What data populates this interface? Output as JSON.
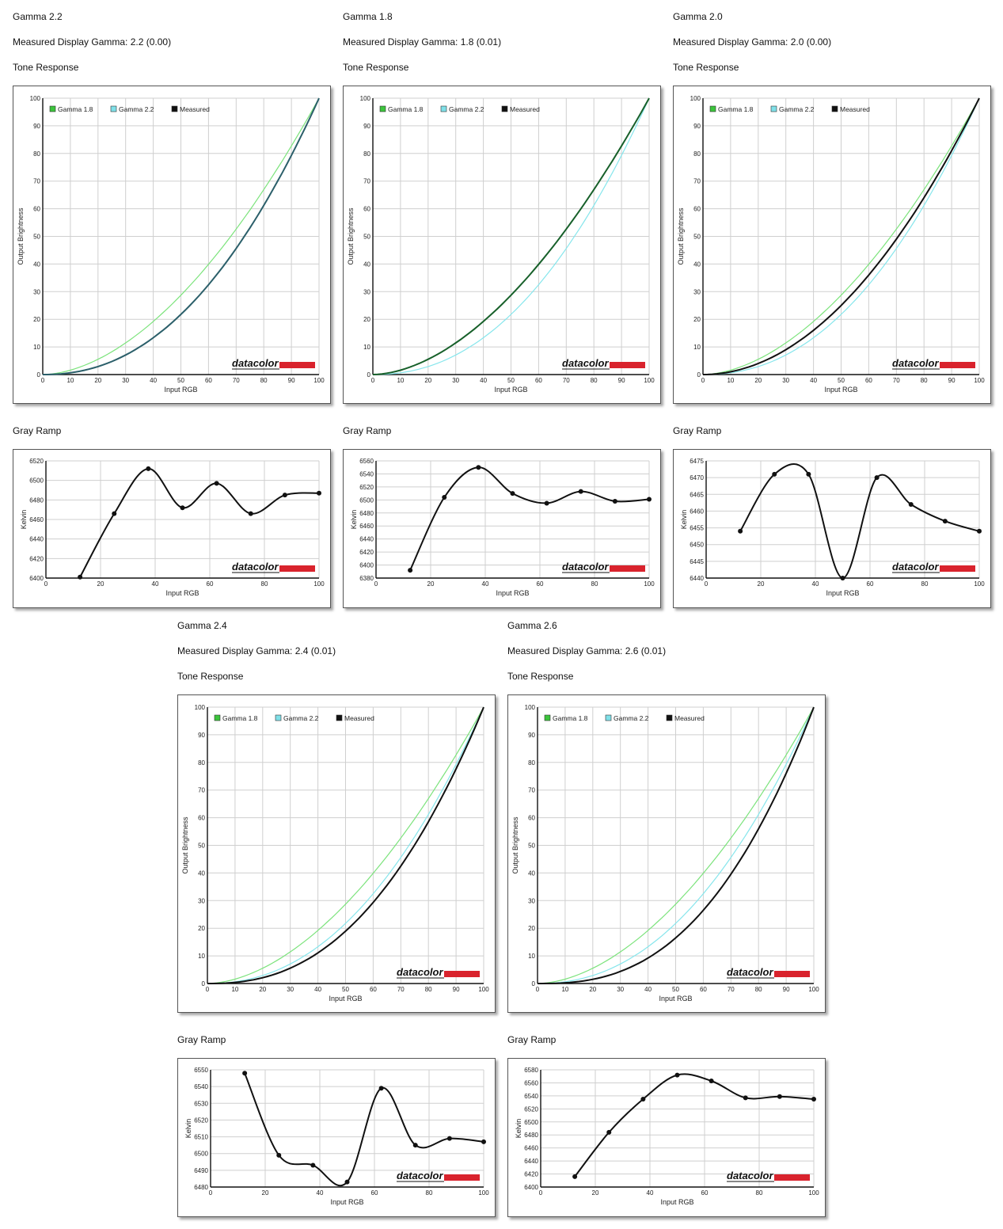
{
  "legend_label": [
    "Gamma 1.8",
    "Gamma 2.2",
    "Measured"
  ],
  "logo_text": "datacolor",
  "colors": {
    "g18": "#7be37b",
    "g22": "#86e6ec",
    "measured": "#111111",
    "logo_red": "#d9232d",
    "grid": "#cfcfcf"
  },
  "panels": [
    {
      "title": "Gamma 2.2",
      "measured_text": "Measured Display Gamma: 2.2 (0.00)",
      "tone_heading": "Tone Response",
      "gray_heading": "Gray Ramp",
      "tone_chart": {
        "type": "line",
        "xlabel": "Input RGB",
        "ylabel": "Output Brightness",
        "xlim": [
          0,
          100
        ],
        "ylim": [
          0,
          100
        ],
        "xticks": [
          0,
          10,
          20,
          30,
          40,
          50,
          60,
          70,
          80,
          90,
          100
        ],
        "yticks": [
          0,
          10,
          20,
          30,
          40,
          50,
          60,
          70,
          80,
          90,
          100
        ],
        "series": [
          {
            "name": "Gamma 1.8",
            "gamma": 1.8
          },
          {
            "name": "Gamma 2.2",
            "gamma": 2.2
          },
          {
            "name": "Measured",
            "gamma": 2.2
          }
        ]
      },
      "gray_chart": {
        "type": "line",
        "xlabel": "Input RGB",
        "ylabel": "Kelvin",
        "xlim": [
          0,
          100
        ],
        "ylim": [
          6400,
          6520
        ],
        "xticks": [
          0,
          20,
          40,
          60,
          80,
          100
        ],
        "yticks": [
          6400,
          6420,
          6440,
          6460,
          6480,
          6500,
          6520
        ],
        "x": [
          12.5,
          25,
          37.5,
          50,
          62.5,
          75,
          87.5,
          100
        ],
        "values": [
          6401,
          6466,
          6512,
          6472,
          6497,
          6466,
          6485,
          6487
        ]
      }
    },
    {
      "title": "Gamma 1.8",
      "measured_text": "Measured Display Gamma: 1.8 (0.01)",
      "tone_heading": "Tone Response",
      "gray_heading": "Gray Ramp",
      "tone_chart": {
        "type": "line",
        "xlabel": "Input RGB",
        "ylabel": "Output Brightness",
        "xlim": [
          0,
          100
        ],
        "ylim": [
          0,
          100
        ],
        "xticks": [
          0,
          10,
          20,
          30,
          40,
          50,
          60,
          70,
          80,
          90,
          100
        ],
        "yticks": [
          0,
          10,
          20,
          30,
          40,
          50,
          60,
          70,
          80,
          90,
          100
        ],
        "series": [
          {
            "name": "Gamma 1.8",
            "gamma": 1.8
          },
          {
            "name": "Gamma 2.2",
            "gamma": 2.2
          },
          {
            "name": "Measured",
            "gamma": 1.8
          }
        ]
      },
      "gray_chart": {
        "type": "line",
        "xlabel": "Input RGB",
        "ylabel": "Kelvin",
        "xlim": [
          0,
          100
        ],
        "ylim": [
          6380,
          6560
        ],
        "xticks": [
          0,
          20,
          40,
          60,
          80,
          100
        ],
        "yticks": [
          6380,
          6400,
          6420,
          6440,
          6460,
          6480,
          6500,
          6520,
          6540,
          6560
        ],
        "x": [
          12.5,
          25,
          37.5,
          50,
          62.5,
          75,
          87.5,
          100
        ],
        "values": [
          6392,
          6504,
          6550,
          6510,
          6495,
          6513,
          6498,
          6501
        ]
      }
    },
    {
      "title": "Gamma 2.0",
      "measured_text": "Measured Display Gamma: 2.0 (0.00)",
      "tone_heading": "Tone Response",
      "gray_heading": "Gray Ramp",
      "tone_chart": {
        "type": "line",
        "xlabel": "Input RGB",
        "ylabel": "Output Brightness",
        "xlim": [
          0,
          100
        ],
        "ylim": [
          0,
          100
        ],
        "xticks": [
          0,
          10,
          20,
          30,
          40,
          50,
          60,
          70,
          80,
          90,
          100
        ],
        "yticks": [
          0,
          10,
          20,
          30,
          40,
          50,
          60,
          70,
          80,
          90,
          100
        ],
        "series": [
          {
            "name": "Gamma 1.8",
            "gamma": 1.8
          },
          {
            "name": "Gamma 2.2",
            "gamma": 2.2
          },
          {
            "name": "Measured",
            "gamma": 2.0
          }
        ]
      },
      "gray_chart": {
        "type": "line",
        "xlabel": "Input RGB",
        "ylabel": "Kelvin",
        "xlim": [
          0,
          100
        ],
        "ylim": [
          6440,
          6475
        ],
        "xticks": [
          0,
          20,
          40,
          60,
          80,
          100
        ],
        "yticks": [
          6440,
          6445,
          6450,
          6455,
          6460,
          6465,
          6470,
          6475
        ],
        "x": [
          12.5,
          25,
          37.5,
          50,
          62.5,
          75,
          87.5,
          100
        ],
        "values": [
          6454,
          6471,
          6471,
          6440,
          6470,
          6462,
          6457,
          6454
        ]
      }
    },
    {
      "title": "Gamma 2.4",
      "measured_text": "Measured Display Gamma: 2.4 (0.01)",
      "tone_heading": "Tone Response",
      "gray_heading": "Gray Ramp",
      "tone_chart": {
        "type": "line",
        "xlabel": "Input RGB",
        "ylabel": "Output Brightness",
        "xlim": [
          0,
          100
        ],
        "ylim": [
          0,
          100
        ],
        "xticks": [
          0,
          10,
          20,
          30,
          40,
          50,
          60,
          70,
          80,
          90,
          100
        ],
        "yticks": [
          0,
          10,
          20,
          30,
          40,
          50,
          60,
          70,
          80,
          90,
          100
        ],
        "series": [
          {
            "name": "Gamma 1.8",
            "gamma": 1.8
          },
          {
            "name": "Gamma 2.2",
            "gamma": 2.2
          },
          {
            "name": "Measured",
            "gamma": 2.4
          }
        ]
      },
      "gray_chart": {
        "type": "line",
        "xlabel": "Input RGB",
        "ylabel": "Kelvin",
        "xlim": [
          0,
          100
        ],
        "ylim": [
          6480,
          6550
        ],
        "xticks": [
          0,
          20,
          40,
          60,
          80,
          100
        ],
        "yticks": [
          6480,
          6490,
          6500,
          6510,
          6520,
          6530,
          6540,
          6550
        ],
        "x": [
          12.5,
          25,
          37.5,
          50,
          62.5,
          75,
          87.5,
          100
        ],
        "values": [
          6548,
          6499,
          6493,
          6483,
          6539,
          6505,
          6509,
          6507
        ]
      }
    },
    {
      "title": "Gamma 2.6",
      "measured_text": "Measured Display Gamma: 2.6 (0.01)",
      "tone_heading": "Tone Response",
      "gray_heading": "Gray Ramp",
      "tone_chart": {
        "type": "line",
        "xlabel": "Input RGB",
        "ylabel": "Output Brightness",
        "xlim": [
          0,
          100
        ],
        "ylim": [
          0,
          100
        ],
        "xticks": [
          0,
          10,
          20,
          30,
          40,
          50,
          60,
          70,
          80,
          90,
          100
        ],
        "yticks": [
          0,
          10,
          20,
          30,
          40,
          50,
          60,
          70,
          80,
          90,
          100
        ],
        "series": [
          {
            "name": "Gamma 1.8",
            "gamma": 1.8
          },
          {
            "name": "Gamma 2.2",
            "gamma": 2.2
          },
          {
            "name": "Measured",
            "gamma": 2.6
          }
        ]
      },
      "gray_chart": {
        "type": "line",
        "xlabel": "Input RGB",
        "ylabel": "Kelvin",
        "xlim": [
          0,
          100
        ],
        "ylim": [
          6400,
          6580
        ],
        "xticks": [
          0,
          20,
          40,
          60,
          80,
          100
        ],
        "yticks": [
          6400,
          6420,
          6440,
          6460,
          6480,
          6500,
          6520,
          6540,
          6560,
          6580
        ],
        "x": [
          12.5,
          25,
          37.5,
          50,
          62.5,
          75,
          87.5,
          100
        ],
        "values": [
          6416,
          6484,
          6535,
          6572,
          6563,
          6537,
          6539,
          6535
        ]
      }
    }
  ]
}
